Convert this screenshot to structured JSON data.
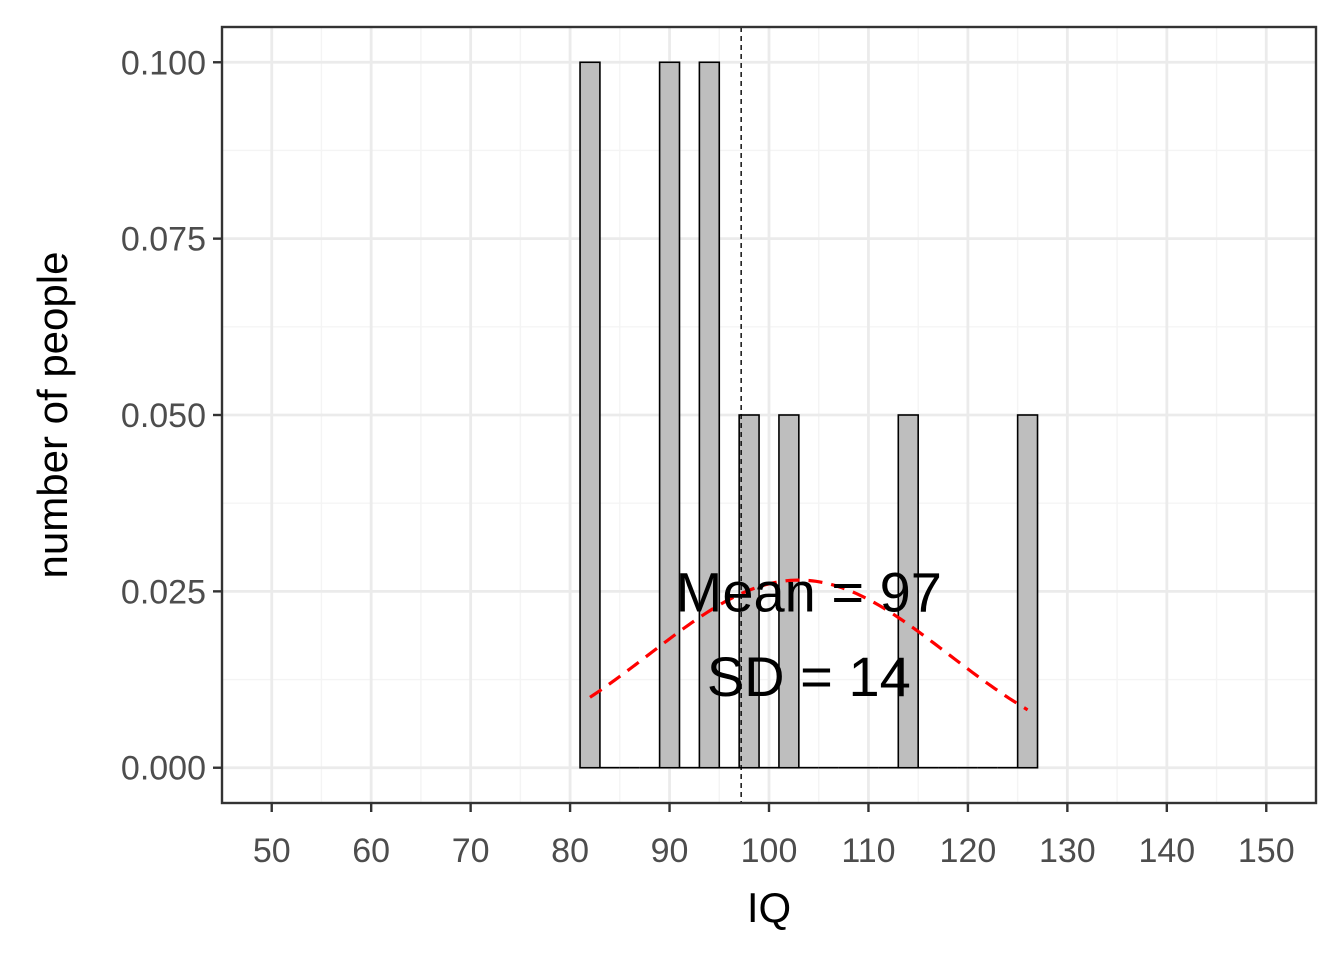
{
  "chart_data": {
    "type": "bar",
    "xlabel": "IQ",
    "ylabel": "number of people",
    "xlim": [
      45,
      155
    ],
    "ylim": [
      -0.005,
      0.105
    ],
    "x_ticks": [
      50,
      60,
      70,
      80,
      90,
      100,
      110,
      120,
      130,
      140,
      150
    ],
    "x_tick_labels": [
      "50",
      "60",
      "70",
      "80",
      "90",
      "100",
      "110",
      "120",
      "130",
      "140",
      "150"
    ],
    "y_ticks": [
      0,
      0.025,
      0.05,
      0.075,
      0.1
    ],
    "y_tick_labels": [
      "0.000",
      "0.025",
      "0.050",
      "0.075",
      "0.100"
    ],
    "grid": true,
    "bin_width": 2,
    "bin_start": 81,
    "bin_end": 127,
    "bars": [
      {
        "x": 82,
        "value": 0.1
      },
      {
        "x": 90,
        "value": 0.1
      },
      {
        "x": 94,
        "value": 0.1
      },
      {
        "x": 98,
        "value": 0.05
      },
      {
        "x": 102,
        "value": 0.05
      },
      {
        "x": 114,
        "value": 0.05
      },
      {
        "x": 126,
        "value": 0.05
      }
    ],
    "mean": 97,
    "sd": 14,
    "mean_line": {
      "x": 97.2
    },
    "normal_curve": {
      "mean": 103,
      "sd": 15,
      "from": 82,
      "to": 126
    },
    "annotations": [
      {
        "text": "Mean = 97",
        "x": 104,
        "y": 0.025
      },
      {
        "text": "SD = 14",
        "x": 104,
        "y": 0.013
      }
    ],
    "colors": {
      "bar_fill": "#bebebe",
      "bar_stroke": "#000000",
      "curve": "#ff0000",
      "grid_major": "#ebebeb",
      "grid_minor": "#f4f4f4",
      "panel_border": "#333333",
      "tick_text": "#4d4d4d"
    }
  }
}
